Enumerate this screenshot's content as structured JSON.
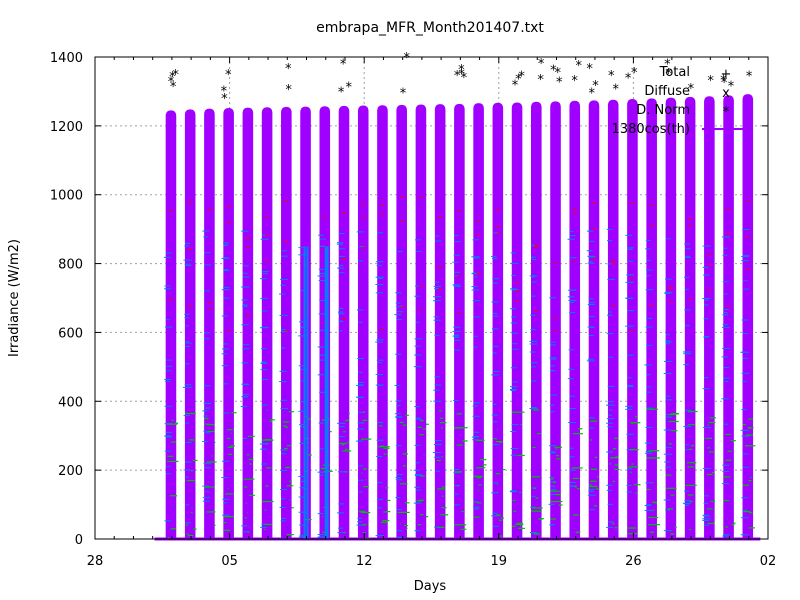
{
  "chart_data": {
    "type": "scatter",
    "title": "embrapa_MFR_Month201407.txt",
    "xlabel": "Days",
    "ylabel": "Irradiance (W/m2)",
    "x_ticks": [
      "28",
      "05",
      "12",
      "19",
      "26",
      "02"
    ],
    "x_tick_days": [
      -3,
      4,
      11,
      18,
      25,
      32
    ],
    "xlim_days": [
      -3,
      32
    ],
    "ylim": [
      0,
      1400
    ],
    "y_ticks": [
      0,
      200,
      400,
      600,
      800,
      1000,
      1200,
      1400
    ],
    "grid": true,
    "legend_position": "top-right",
    "series": [
      {
        "name": "Total",
        "color": "#ff0000",
        "marker": "+"
      },
      {
        "name": "Diffuse",
        "color": "#00c000",
        "marker": "x"
      },
      {
        "name": "D. Norm",
        "color": "#0080ff",
        "marker": "*"
      },
      {
        "name": "1380cos(th)",
        "color": "#a000ff",
        "marker": "line"
      }
    ],
    "daily_peak_1380cos": [
      {
        "day": 0.95,
        "peak": 1245
      },
      {
        "day": 1.95,
        "peak": 1248
      },
      {
        "day": 2.95,
        "peak": 1250
      },
      {
        "day": 3.95,
        "peak": 1252
      },
      {
        "day": 4.95,
        "peak": 1253
      },
      {
        "day": 5.95,
        "peak": 1254
      },
      {
        "day": 6.95,
        "peak": 1255
      },
      {
        "day": 7.95,
        "peak": 1256
      },
      {
        "day": 8.95,
        "peak": 1257
      },
      {
        "day": 9.95,
        "peak": 1258
      },
      {
        "day": 10.95,
        "peak": 1259
      },
      {
        "day": 11.95,
        "peak": 1260
      },
      {
        "day": 12.95,
        "peak": 1261
      },
      {
        "day": 13.95,
        "peak": 1262
      },
      {
        "day": 14.95,
        "peak": 1263
      },
      {
        "day": 15.95,
        "peak": 1264
      },
      {
        "day": 16.95,
        "peak": 1266
      },
      {
        "day": 17.95,
        "peak": 1267
      },
      {
        "day": 18.95,
        "peak": 1268
      },
      {
        "day": 19.95,
        "peak": 1270
      },
      {
        "day": 20.95,
        "peak": 1271
      },
      {
        "day": 21.95,
        "peak": 1273
      },
      {
        "day": 22.95,
        "peak": 1274
      },
      {
        "day": 23.95,
        "peak": 1276
      },
      {
        "day": 24.95,
        "peak": 1278
      },
      {
        "day": 25.95,
        "peak": 1280
      },
      {
        "day": 26.95,
        "peak": 1282
      },
      {
        "day": 27.95,
        "peak": 1284
      },
      {
        "day": 28.95,
        "peak": 1286
      },
      {
        "day": 29.95,
        "peak": 1289
      },
      {
        "day": 30.95,
        "peak": 1292
      }
    ]
  }
}
